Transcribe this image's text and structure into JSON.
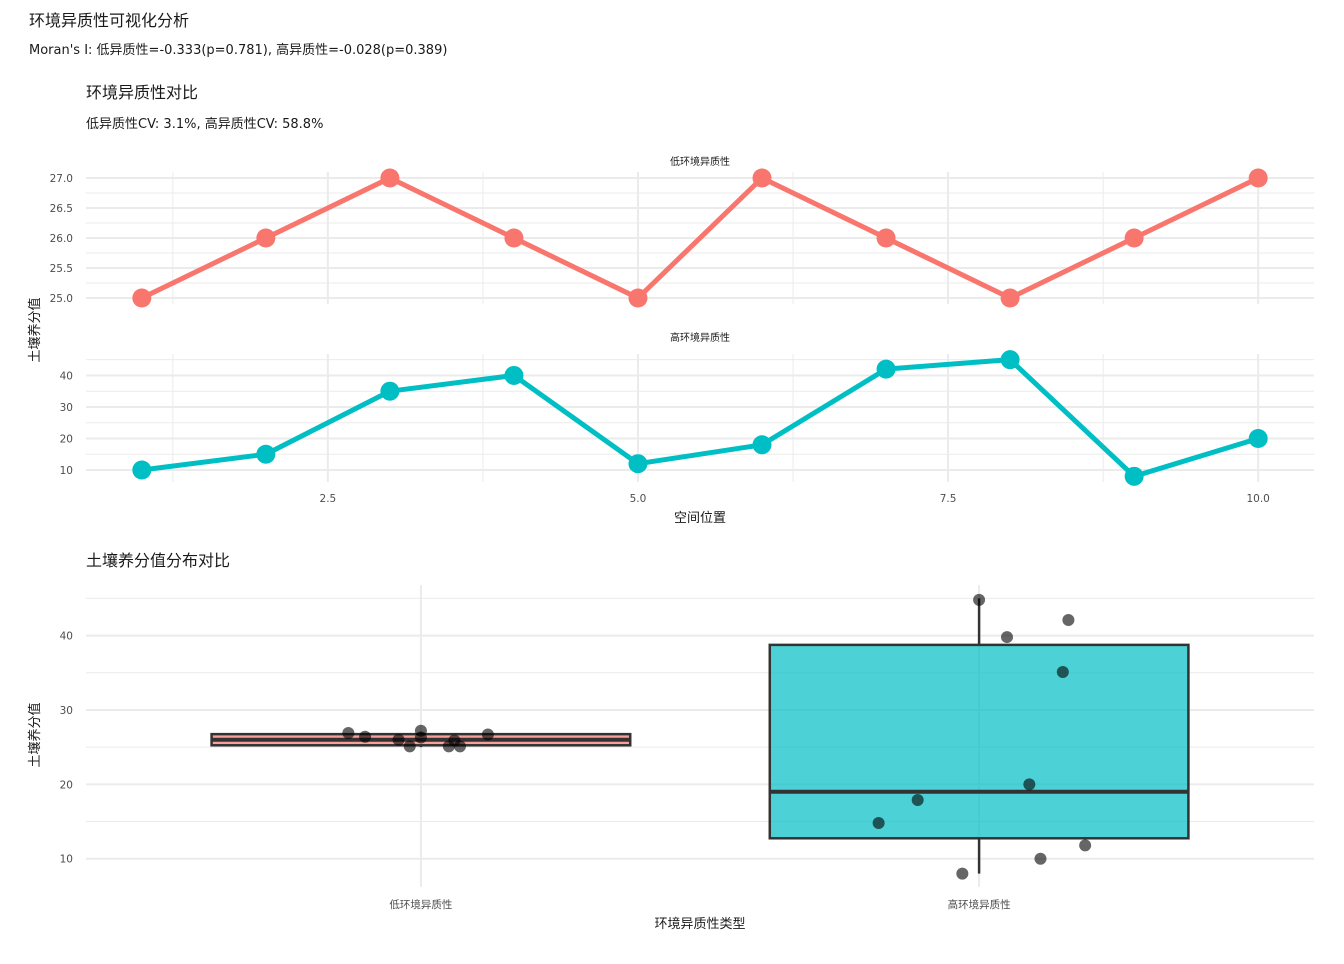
{
  "page": {
    "title": "环境异质性可视化分析",
    "subtitle": "Moran's I: 低异质性=-0.333(p=0.781), 高异质性=-0.028(p=0.389)"
  },
  "chart_data": [
    {
      "type": "line",
      "title": "环境异质性对比",
      "subtitle": "低异质性CV: 3.1%, 高异质性CV: 58.8%",
      "xlabel": "空间位置",
      "ylabel": "土壤养分值",
      "x": [
        1,
        2,
        3,
        4,
        5,
        6,
        7,
        8,
        9,
        10
      ],
      "x_ticks": [
        "2.5",
        "5.0",
        "7.5",
        "10.0"
      ],
      "xlim": [
        0.55,
        10.45
      ],
      "grid": true,
      "facets": [
        {
          "label": "低环境异质性",
          "color": "#F8766D",
          "values": [
            25,
            26,
            27,
            26,
            25,
            27,
            26,
            25,
            26,
            27
          ],
          "ylim": [
            24.9,
            27.1
          ],
          "y_ticks": [
            "25.0",
            "25.5",
            "26.0",
            "26.5",
            "27.0"
          ]
        },
        {
          "label": "高环境异质性",
          "color": "#00BFC4",
          "values": [
            10,
            15,
            35,
            40,
            12,
            18,
            42,
            45,
            8,
            20
          ],
          "ylim": [
            6.2,
            46.8
          ],
          "y_ticks": [
            "10",
            "20",
            "30",
            "40"
          ]
        }
      ]
    },
    {
      "type": "box",
      "title": "土壤养分值分布对比",
      "xlabel": "环境异质性类型",
      "ylabel": "土壤养分值",
      "categories": [
        "低环境异质性",
        "高环境异质性"
      ],
      "ylim": [
        6.2,
        46.8
      ],
      "y_ticks": [
        "10",
        "20",
        "30",
        "40"
      ],
      "grid": true,
      "boxes": [
        {
          "name": "低环境异质性",
          "color": "#F8766D",
          "q1": 25.25,
          "median": 26,
          "q3": 26.75,
          "min": 25,
          "max": 27,
          "points": [
            {
              "x": 0.87,
              "y": 26.9
            },
            {
              "x": 0.9,
              "y": 26.4
            },
            {
              "x": 0.96,
              "y": 26.0
            },
            {
              "x": 0.98,
              "y": 25.1
            },
            {
              "x": 1.0,
              "y": 26.3
            },
            {
              "x": 1.0,
              "y": 27.2
            },
            {
              "x": 1.05,
              "y": 25.1
            },
            {
              "x": 1.06,
              "y": 25.9
            },
            {
              "x": 1.07,
              "y": 25.1
            },
            {
              "x": 1.12,
              "y": 26.7
            }
          ]
        },
        {
          "name": "高环境异质性",
          "color": "#00BFC4",
          "q1": 12.75,
          "median": 19,
          "q3": 38.75,
          "min": 8,
          "max": 45,
          "points": [
            {
              "x": 1.82,
              "y": 14.8
            },
            {
              "x": 1.89,
              "y": 17.9
            },
            {
              "x": 1.97,
              "y": 8.0
            },
            {
              "x": 2.0,
              "y": 44.8
            },
            {
              "x": 2.05,
              "y": 39.8
            },
            {
              "x": 2.09,
              "y": 20.0
            },
            {
              "x": 2.11,
              "y": 10.0
            },
            {
              "x": 2.15,
              "y": 35.1
            },
            {
              "x": 2.16,
              "y": 42.1
            },
            {
              "x": 2.19,
              "y": 11.8
            }
          ]
        }
      ]
    }
  ]
}
